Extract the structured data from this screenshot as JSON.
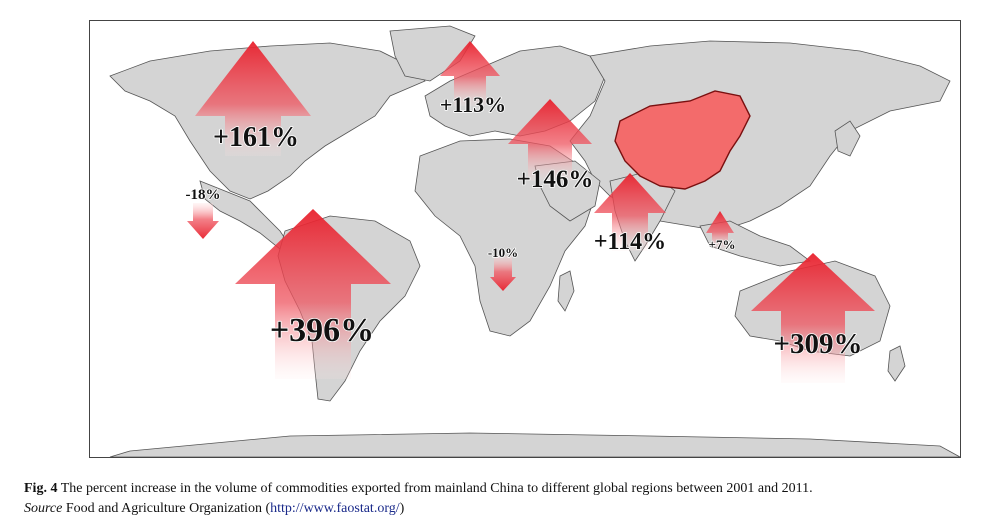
{
  "figure": {
    "label": "Fig. 4",
    "caption_text": "The percent increase in the volume of commodities exported from mainland China to different global regions between 2001 and 2011.",
    "source_label": "Source",
    "source_text": "Food and Agriculture Organization (",
    "source_url": "http://www.faostat.org/",
    "source_close": ")"
  },
  "map": {
    "highlight_region": "China",
    "highlight_color": "#f36b6b",
    "arrow_color": "#e8323c",
    "land_color": "#d4d4d4",
    "regions": [
      {
        "id": "north-america",
        "label": "+161%",
        "value": 161,
        "direction": "up"
      },
      {
        "id": "europe",
        "label": "+113%",
        "value": 113,
        "direction": "up"
      },
      {
        "id": "middle-east",
        "label": "+146%",
        "value": 146,
        "direction": "up"
      },
      {
        "id": "south-asia",
        "label": "+114%",
        "value": 114,
        "direction": "up"
      },
      {
        "id": "southeast-asia",
        "label": "+7%",
        "value": 7,
        "direction": "up"
      },
      {
        "id": "central-america",
        "label": "-18%",
        "value": -18,
        "direction": "down"
      },
      {
        "id": "africa",
        "label": "-10%",
        "value": -10,
        "direction": "down"
      },
      {
        "id": "south-america",
        "label": "+396%",
        "value": 396,
        "direction": "up"
      },
      {
        "id": "oceania",
        "label": "+309%",
        "value": 309,
        "direction": "up"
      }
    ]
  }
}
